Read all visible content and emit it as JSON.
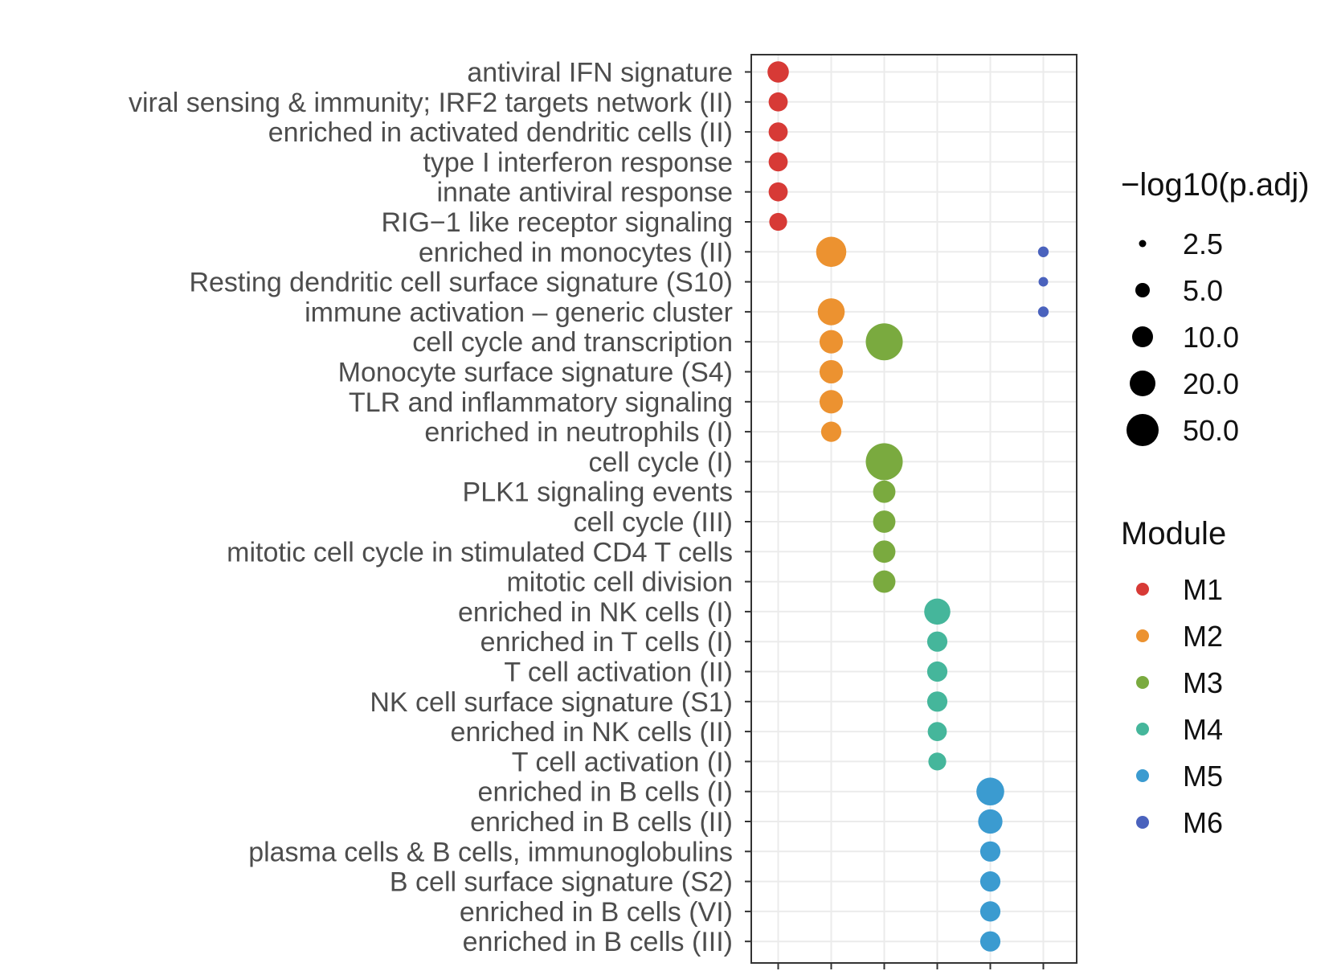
{
  "chart_data": {
    "type": "scatter",
    "title": "",
    "xlabel": "",
    "ylabel": "",
    "categories": [
      "antiviral IFN signature",
      "viral sensing & immunity; IRF2 targets network (II)",
      "enriched in activated dendritic cells (II)",
      "type I interferon response",
      "innate antiviral response",
      "RIG−1 like receptor signaling",
      "enriched in monocytes (II)",
      "Resting dendritic cell surface signature (S10)",
      "immune activation – generic cluster",
      "cell cycle and transcription",
      "Monocyte surface signature (S4)",
      "TLR and inflammatory signaling",
      "enriched in neutrophils (I)",
      "cell cycle (I)",
      "PLK1 signaling events",
      "cell cycle (III)",
      "mitotic cell cycle in stimulated CD4 T cells",
      "mitotic cell division",
      "enriched in NK cells (I)",
      "enriched in T cells (I)",
      "T cell activation (II)",
      "NK cell surface signature (S1)",
      "enriched in NK cells (II)",
      "T cell activation (I)",
      "enriched in B cells (I)",
      "enriched in B cells (II)",
      "plasma cells & B cells, immunoglobulins",
      "B cell surface signature (S2)",
      "enriched in B cells (VI)",
      "enriched in B cells (III)"
    ],
    "modules": [
      "M1",
      "M2",
      "M3",
      "M4",
      "M5",
      "M6"
    ],
    "module_colors": {
      "M1": "#d73a36",
      "M2": "#ec9230",
      "M3": "#7aaa3f",
      "M4": "#45b69b",
      "M5": "#3b9bd0",
      "M6": "#4a62bd"
    },
    "points": [
      {
        "term": "antiviral IFN signature",
        "module": "M1",
        "neglog10_padj": 10
      },
      {
        "term": "viral sensing & immunity; IRF2 targets network (II)",
        "module": "M1",
        "neglog10_padj": 8
      },
      {
        "term": "enriched in activated dendritic cells (II)",
        "module": "M1",
        "neglog10_padj": 8
      },
      {
        "term": "type I interferon response",
        "module": "M1",
        "neglog10_padj": 8
      },
      {
        "term": "innate antiviral response",
        "module": "M1",
        "neglog10_padj": 8
      },
      {
        "term": "RIG−1 like receptor signaling",
        "module": "M1",
        "neglog10_padj": 7
      },
      {
        "term": "enriched in monocytes (II)",
        "module": "M2",
        "neglog10_padj": 20
      },
      {
        "term": "immune activation – generic cluster",
        "module": "M2",
        "neglog10_padj": 16
      },
      {
        "term": "cell cycle and transcription",
        "module": "M2",
        "neglog10_padj": 12
      },
      {
        "term": "Monocyte surface signature (S4)",
        "module": "M2",
        "neglog10_padj": 12
      },
      {
        "term": "TLR and inflammatory signaling",
        "module": "M2",
        "neglog10_padj": 12
      },
      {
        "term": "enriched in neutrophils (I)",
        "module": "M2",
        "neglog10_padj": 9
      },
      {
        "term": "cell cycle and transcription",
        "module": "M3",
        "neglog10_padj": 30
      },
      {
        "term": "cell cycle (I)",
        "module": "M3",
        "neglog10_padj": 30
      },
      {
        "term": "PLK1 signaling events",
        "module": "M3",
        "neglog10_padj": 11
      },
      {
        "term": "cell cycle (III)",
        "module": "M3",
        "neglog10_padj": 11
      },
      {
        "term": "mitotic cell cycle in stimulated CD4 T cells",
        "module": "M3",
        "neglog10_padj": 11
      },
      {
        "term": "mitotic cell division",
        "module": "M3",
        "neglog10_padj": 11
      },
      {
        "term": "enriched in NK cells (I)",
        "module": "M4",
        "neglog10_padj": 15
      },
      {
        "term": "enriched in T cells (I)",
        "module": "M4",
        "neglog10_padj": 9
      },
      {
        "term": "T cell activation (II)",
        "module": "M4",
        "neglog10_padj": 9
      },
      {
        "term": "NK cell surface signature (S1)",
        "module": "M4",
        "neglog10_padj": 9
      },
      {
        "term": "enriched in NK cells (II)",
        "module": "M4",
        "neglog10_padj": 8
      },
      {
        "term": "T cell activation (I)",
        "module": "M4",
        "neglog10_padj": 7
      },
      {
        "term": "enriched in B cells (I)",
        "module": "M5",
        "neglog10_padj": 17
      },
      {
        "term": "enriched in B cells (II)",
        "module": "M5",
        "neglog10_padj": 13
      },
      {
        "term": "plasma cells & B cells, immunoglobulins",
        "module": "M5",
        "neglog10_padj": 9
      },
      {
        "term": "B cell surface signature (S2)",
        "module": "M5",
        "neglog10_padj": 9
      },
      {
        "term": "enriched in B cells (VI)",
        "module": "M5",
        "neglog10_padj": 9
      },
      {
        "term": "enriched in B cells (III)",
        "module": "M5",
        "neglog10_padj": 9
      },
      {
        "term": "enriched in monocytes (II)",
        "module": "M6",
        "neglog10_padj": 2.5
      },
      {
        "term": "Resting dendritic cell surface signature (S10)",
        "module": "M6",
        "neglog10_padj": 2
      },
      {
        "term": "immune activation – generic cluster",
        "module": "M6",
        "neglog10_padj": 2.5
      }
    ],
    "size_legend": {
      "title": "−log10(p.adj)",
      "values": [
        2.5,
        5.0,
        10.0,
        20.0,
        50.0
      ],
      "labels": [
        "2.5",
        "5.0",
        "10.0",
        "20.0",
        "50.0"
      ]
    },
    "color_legend": {
      "title": "Module",
      "labels": [
        "M1",
        "M2",
        "M3",
        "M4",
        "M5",
        "M6"
      ]
    },
    "grid": true,
    "legend_position": "right"
  }
}
